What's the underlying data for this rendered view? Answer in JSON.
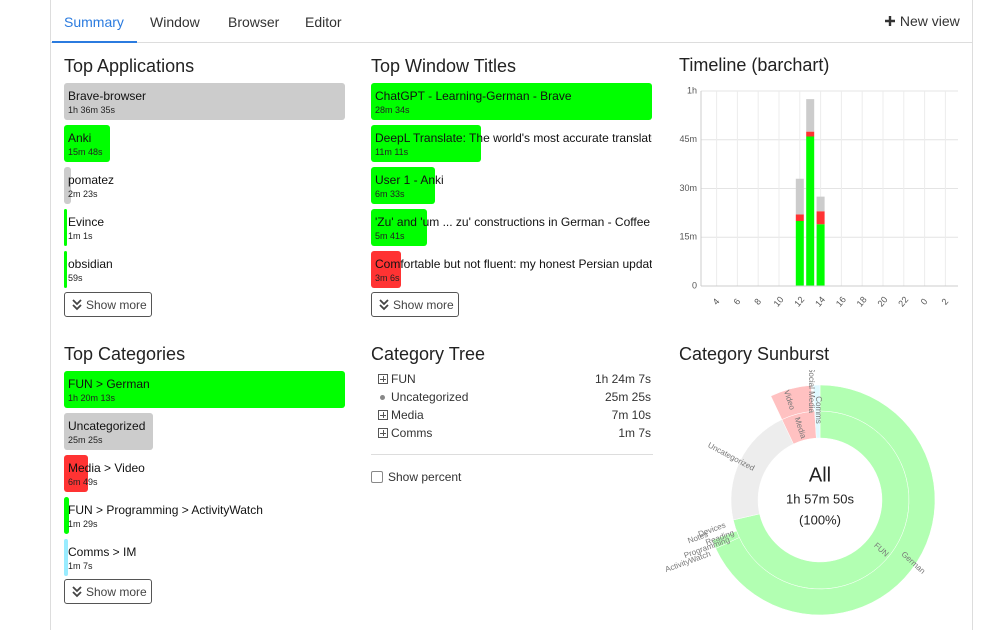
{
  "tabs": [
    "Summary",
    "Window",
    "Browser",
    "Editor"
  ],
  "new_view": "New view",
  "top_applications": {
    "title": "Top Applications",
    "show_more": "Show more",
    "items": [
      {
        "name": "Brave-browser",
        "duration": "1h 36m 35s",
        "color": "#cccccc"
      },
      {
        "name": "Anki",
        "duration": "15m 48s",
        "color": "#00ff00"
      },
      {
        "name": "pomatez",
        "duration": "2m 23s",
        "color": "#cccccc"
      },
      {
        "name": "Evince",
        "duration": "1m 1s",
        "color": "#00ff00"
      },
      {
        "name": "obsidian",
        "duration": "59s",
        "color": "#00ff00"
      }
    ]
  },
  "top_window_titles": {
    "title": "Top Window Titles",
    "show_more": "Show more",
    "items": [
      {
        "name": "ChatGPT - Learning-German - Brave",
        "duration": "28m 34s",
        "color": "#00ff00"
      },
      {
        "name": "DeepL Translate: The world's most accurate translator",
        "duration": "11m 11s",
        "color": "#00ff00"
      },
      {
        "name": "User 1 - Anki",
        "duration": "6m 33s",
        "color": "#00ff00"
      },
      {
        "name": "'Zu' and 'um ... zu' constructions in German - Coffee Br",
        "duration": "5m 41s",
        "color": "#00ff00"
      },
      {
        "name": "Comfortable but not fluent: my honest Persian update",
        "duration": "3m 6s",
        "color": "#ff3333"
      }
    ]
  },
  "top_categories": {
    "title": "Top Categories",
    "show_more": "Show more",
    "items": [
      {
        "name": "FUN > German",
        "duration": "1h 20m 13s",
        "color": "#00ff00"
      },
      {
        "name": "Uncategorized",
        "duration": "25m 25s",
        "color": "#cccccc"
      },
      {
        "name": "Media > Video",
        "duration": "6m 49s",
        "color": "#ff3333"
      },
      {
        "name": "FUN > Programming > ActivityWatch",
        "duration": "1m 29s",
        "color": "#00ff00"
      },
      {
        "name": "Comms > IM",
        "duration": "1m 7s",
        "color": "#99ecff"
      }
    ]
  },
  "category_tree": {
    "title": "Category Tree",
    "show_percent": "Show percent",
    "rows": [
      {
        "name": "FUN",
        "duration": "1h 24m 7s",
        "expandable": true,
        "color": "#00ff00"
      },
      {
        "name": "Uncategorized",
        "duration": "25m 25s",
        "expandable": false,
        "color": "#cccccc"
      },
      {
        "name": "Media",
        "duration": "7m 10s",
        "expandable": true,
        "color": "#ff3333"
      },
      {
        "name": "Comms",
        "duration": "1m 7s",
        "expandable": true,
        "color": "#99ecff"
      }
    ]
  },
  "sunburst": {
    "title": "Category Sunburst",
    "center_label": "All",
    "total": "1h 57m 50s",
    "percent": "(100%)",
    "labels": [
      "FUN",
      "German",
      "Uncategorized",
      "Social Media",
      "Video",
      "Media",
      "Comms",
      "Devices",
      "Notes",
      "Reading",
      "Programming",
      "ActivityWatch"
    ]
  },
  "chart_data": {
    "type": "bar",
    "stacked": true,
    "title": "Timeline (barchart)",
    "categories": [
      null,
      "4",
      null,
      "6",
      null,
      "8",
      null,
      "10",
      null,
      "12",
      null,
      "14",
      null,
      "16",
      null,
      "18",
      null,
      "20",
      null,
      "22",
      null,
      "0",
      null,
      "2"
    ],
    "series": [
      {
        "color": "#00ff00",
        "values": [
          null,
          null,
          null,
          null,
          null,
          null,
          null,
          null,
          null,
          20,
          46,
          19,
          null,
          null,
          null,
          null,
          null,
          null,
          null,
          null,
          null,
          null,
          null,
          null
        ]
      },
      {
        "color": "#ff3333",
        "values": [
          null,
          null,
          null,
          null,
          null,
          null,
          null,
          null,
          null,
          2,
          1.5,
          4,
          null,
          null,
          null,
          null,
          null,
          null,
          null,
          null,
          null,
          null,
          null,
          null
        ]
      },
      {
        "color": "#cccccc",
        "values": [
          null,
          null,
          null,
          null,
          null,
          null,
          null,
          null,
          null,
          11,
          10,
          4.5,
          null,
          null,
          null,
          null,
          null,
          null,
          null,
          null,
          null,
          null,
          null,
          null
        ]
      }
    ],
    "ylim": [
      0,
      60
    ],
    "yticks": [
      0,
      {
        "value": 15,
        "label": "15m"
      },
      {
        "value": 30,
        "label": "30m"
      },
      {
        "value": 45,
        "label": "45m"
      },
      {
        "value": 60,
        "label": "1h"
      }
    ],
    "grid": true
  }
}
